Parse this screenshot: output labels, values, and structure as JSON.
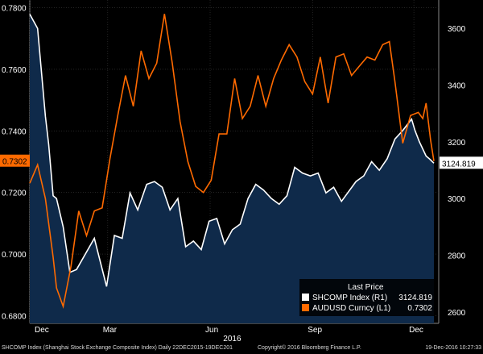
{
  "colors": {
    "background": "#000000",
    "area_fill": "#0f2a4a",
    "shcomp_line": "#ffffff",
    "audusd_line": "#ff6a00",
    "grid": "#3a3a3a",
    "label_box": "#ff6a00"
  },
  "chart_data": {
    "type": "line",
    "title": "",
    "grid": true,
    "legend_position": "bottom-right",
    "legend_title": "Last Price",
    "x_start": "2015-12-22",
    "x_end": "2016-12-19",
    "x_ticks": [
      "Dec",
      "Mar",
      "Jun",
      "Sep",
      "Dec"
    ],
    "x_year_label": "2016",
    "left_axis": {
      "ylim": [
        0.6775,
        0.7825
      ],
      "ticks": [
        "0.6800",
        "0.7000",
        "0.7200",
        "0.7400",
        "0.7600",
        "0.7800"
      ]
    },
    "right_axis": {
      "ylim": [
        2560,
        3700
      ],
      "ticks": [
        "2600",
        "2800",
        "3000",
        "3200",
        "3400",
        "3600"
      ]
    },
    "series": [
      {
        "name": "AUDUSD Curncy (L1)",
        "axis": "left",
        "last_value": "0.7302",
        "points": [
          [
            "2015-12-22",
            0.723
          ],
          [
            "2015-12-29",
            0.729
          ],
          [
            "2016-01-05",
            0.718
          ],
          [
            "2016-01-12",
            0.699
          ],
          [
            "2016-01-15",
            0.689
          ],
          [
            "2016-01-21",
            0.683
          ],
          [
            "2016-01-28",
            0.696
          ],
          [
            "2016-02-04",
            0.714
          ],
          [
            "2016-02-11",
            0.706
          ],
          [
            "2016-02-18",
            0.714
          ],
          [
            "2016-02-25",
            0.715
          ],
          [
            "2016-03-03",
            0.731
          ],
          [
            "2016-03-10",
            0.745
          ],
          [
            "2016-03-17",
            0.758
          ],
          [
            "2016-03-24",
            0.748
          ],
          [
            "2016-03-31",
            0.766
          ],
          [
            "2016-04-07",
            0.757
          ],
          [
            "2016-04-14",
            0.762
          ],
          [
            "2016-04-21",
            0.778
          ],
          [
            "2016-04-28",
            0.762
          ],
          [
            "2016-05-05",
            0.743
          ],
          [
            "2016-05-12",
            0.73
          ],
          [
            "2016-05-19",
            0.722
          ],
          [
            "2016-05-26",
            0.72
          ],
          [
            "2016-06-02",
            0.724
          ],
          [
            "2016-06-09",
            0.739
          ],
          [
            "2016-06-16",
            0.739
          ],
          [
            "2016-06-23",
            0.757
          ],
          [
            "2016-06-30",
            0.744
          ],
          [
            "2016-07-07",
            0.748
          ],
          [
            "2016-07-14",
            0.758
          ],
          [
            "2016-07-21",
            0.748
          ],
          [
            "2016-07-28",
            0.757
          ],
          [
            "2016-08-04",
            0.763
          ],
          [
            "2016-08-11",
            0.768
          ],
          [
            "2016-08-18",
            0.764
          ],
          [
            "2016-08-25",
            0.756
          ],
          [
            "2016-09-01",
            0.752
          ],
          [
            "2016-09-08",
            0.764
          ],
          [
            "2016-09-15",
            0.749
          ],
          [
            "2016-09-22",
            0.764
          ],
          [
            "2016-09-29",
            0.765
          ],
          [
            "2016-10-06",
            0.758
          ],
          [
            "2016-10-13",
            0.761
          ],
          [
            "2016-10-20",
            0.764
          ],
          [
            "2016-10-27",
            0.763
          ],
          [
            "2016-11-03",
            0.768
          ],
          [
            "2016-11-09",
            0.769
          ],
          [
            "2016-11-14",
            0.756
          ],
          [
            "2016-11-21",
            0.736
          ],
          [
            "2016-11-28",
            0.745
          ],
          [
            "2016-12-05",
            0.746
          ],
          [
            "2016-12-09",
            0.744
          ],
          [
            "2016-12-12",
            0.749
          ],
          [
            "2016-12-16",
            0.737
          ],
          [
            "2016-12-19",
            0.7302
          ]
        ]
      },
      {
        "name": "SHCOMP Index (R1)",
        "axis": "right",
        "last_value": "3124.819",
        "points": [
          [
            "2015-12-22",
            3650
          ],
          [
            "2015-12-29",
            3600
          ],
          [
            "2016-01-05",
            3290
          ],
          [
            "2016-01-08",
            3190
          ],
          [
            "2016-01-12",
            3010
          ],
          [
            "2016-01-15",
            3000
          ],
          [
            "2016-01-21",
            2900
          ],
          [
            "2016-01-27",
            2740
          ],
          [
            "2016-02-02",
            2750
          ],
          [
            "2016-02-18",
            2860
          ],
          [
            "2016-02-29",
            2690
          ],
          [
            "2016-03-07",
            2870
          ],
          [
            "2016-03-14",
            2860
          ],
          [
            "2016-03-21",
            3020
          ],
          [
            "2016-03-28",
            2960
          ],
          [
            "2016-04-05",
            3050
          ],
          [
            "2016-04-12",
            3060
          ],
          [
            "2016-04-19",
            3040
          ],
          [
            "2016-04-26",
            2960
          ],
          [
            "2016-05-03",
            3000
          ],
          [
            "2016-05-10",
            2830
          ],
          [
            "2016-05-17",
            2850
          ],
          [
            "2016-05-24",
            2820
          ],
          [
            "2016-05-31",
            2920
          ],
          [
            "2016-06-07",
            2930
          ],
          [
            "2016-06-14",
            2840
          ],
          [
            "2016-06-21",
            2890
          ],
          [
            "2016-06-28",
            2910
          ],
          [
            "2016-07-05",
            3000
          ],
          [
            "2016-07-12",
            3050
          ],
          [
            "2016-07-19",
            3030
          ],
          [
            "2016-07-26",
            3000
          ],
          [
            "2016-08-02",
            2980
          ],
          [
            "2016-08-09",
            3010
          ],
          [
            "2016-08-16",
            3110
          ],
          [
            "2016-08-23",
            3090
          ],
          [
            "2016-08-30",
            3080
          ],
          [
            "2016-09-06",
            3090
          ],
          [
            "2016-09-13",
            3020
          ],
          [
            "2016-09-20",
            3040
          ],
          [
            "2016-09-27",
            2990
          ],
          [
            "2016-10-10",
            3060
          ],
          [
            "2016-10-17",
            3080
          ],
          [
            "2016-10-24",
            3130
          ],
          [
            "2016-10-31",
            3100
          ],
          [
            "2016-11-07",
            3140
          ],
          [
            "2016-11-14",
            3210
          ],
          [
            "2016-11-21",
            3240
          ],
          [
            "2016-11-29",
            3280
          ],
          [
            "2016-12-02",
            3240
          ],
          [
            "2016-12-06",
            3200
          ],
          [
            "2016-12-12",
            3150
          ],
          [
            "2016-12-15",
            3140
          ],
          [
            "2016-12-19",
            3124.819
          ]
        ]
      }
    ]
  },
  "legend": {
    "title": "Last Price",
    "items": [
      {
        "label": "SHCOMP Index  (R1)",
        "value": "3124.819"
      },
      {
        "label": "AUDUSD Curncy  (L1)",
        "value": "0.7302"
      }
    ]
  },
  "value_tags": {
    "left": "0.7302",
    "right": "3124.819"
  },
  "footer": {
    "left": "SHCOMP Index (Shanghai Stock Exchange Composite Index)  Daily 22DEC2015-19DEC201",
    "center": "Copyright© 2016 Bloomberg Finance L.P.",
    "right": "19-Dec-2016 10:27:33"
  }
}
